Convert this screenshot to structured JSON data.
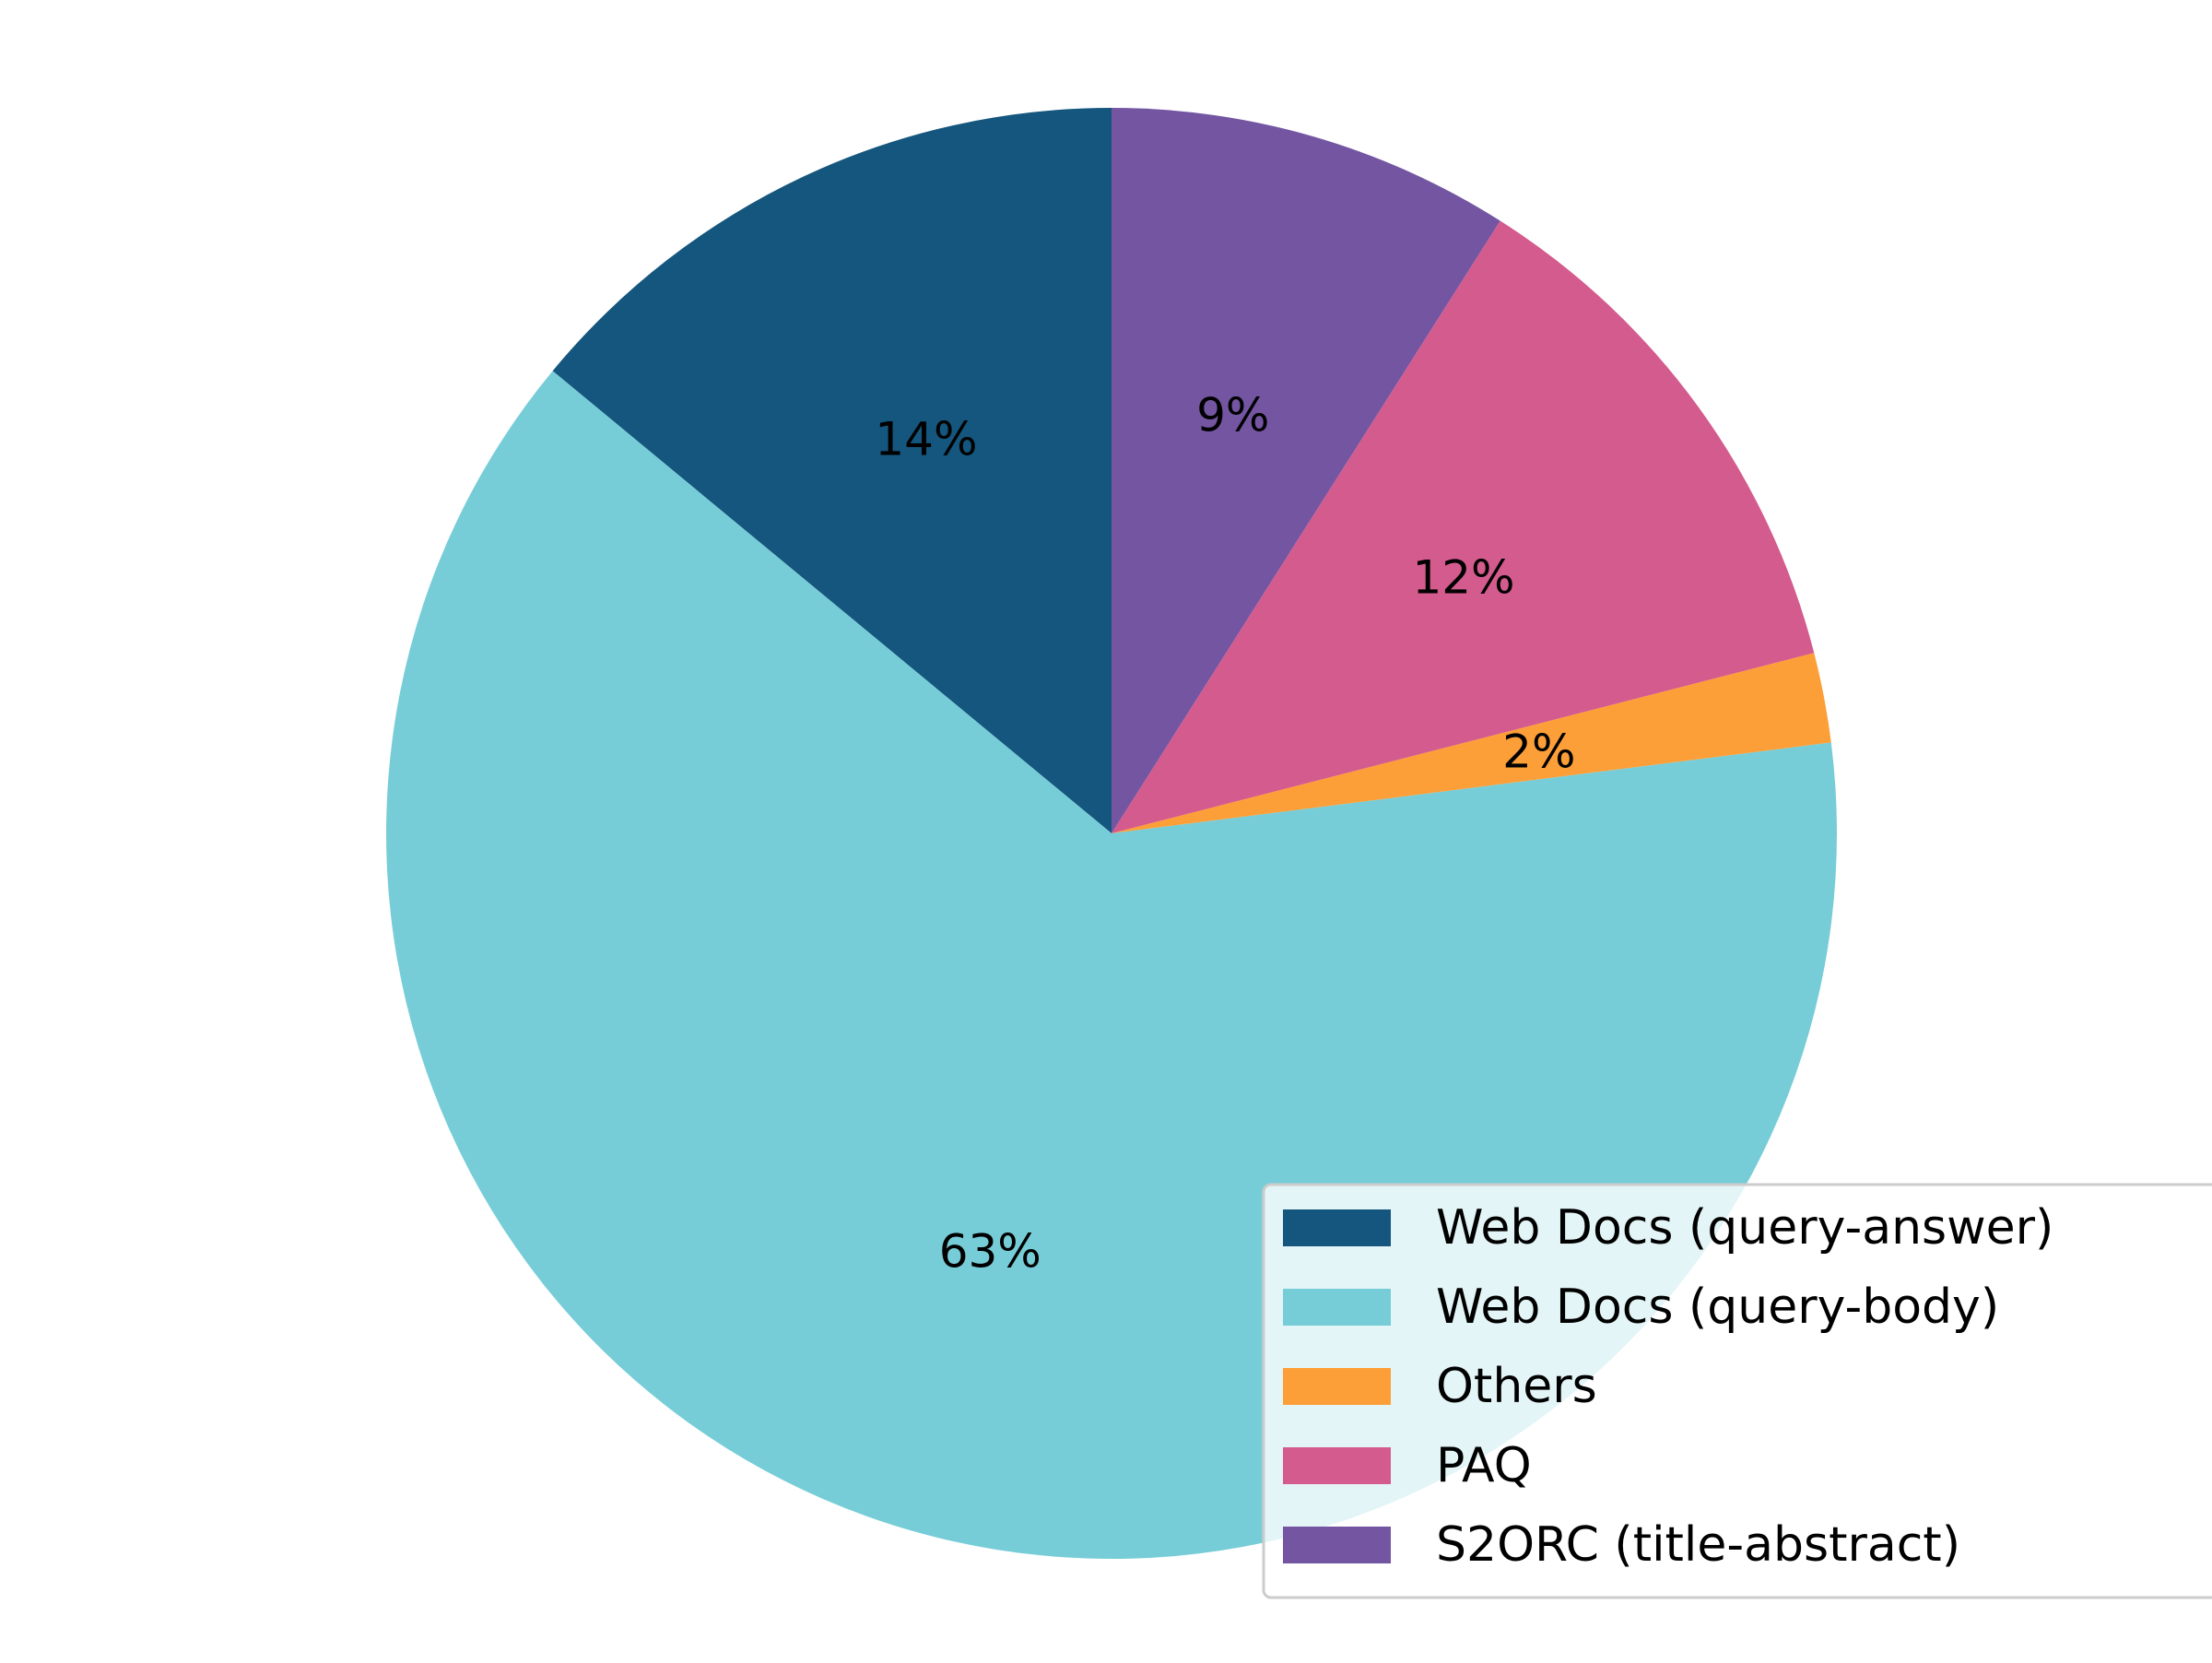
{
  "chart_data": {
    "type": "pie",
    "start_angle_deg": 90,
    "direction": "counterclockwise",
    "legend": {
      "placement": "lower-right"
    },
    "slices": [
      {
        "label": "Web Docs (query-answer)",
        "value": 14,
        "value_label": "14%",
        "color": "#14567d"
      },
      {
        "label": "Web Docs (query-body)",
        "value": 63,
        "value_label": "63%",
        "color": "#77cdd7"
      },
      {
        "label": "Others",
        "value": 2,
        "value_label": "2%",
        "color": "#fd9f38"
      },
      {
        "label": "PAQ",
        "value": 12,
        "value_label": "12%",
        "color": "#d45b8d"
      },
      {
        "label": "S2ORC (title-abstract)",
        "value": 9,
        "value_label": "9%",
        "color": "#7455a2"
      }
    ]
  }
}
